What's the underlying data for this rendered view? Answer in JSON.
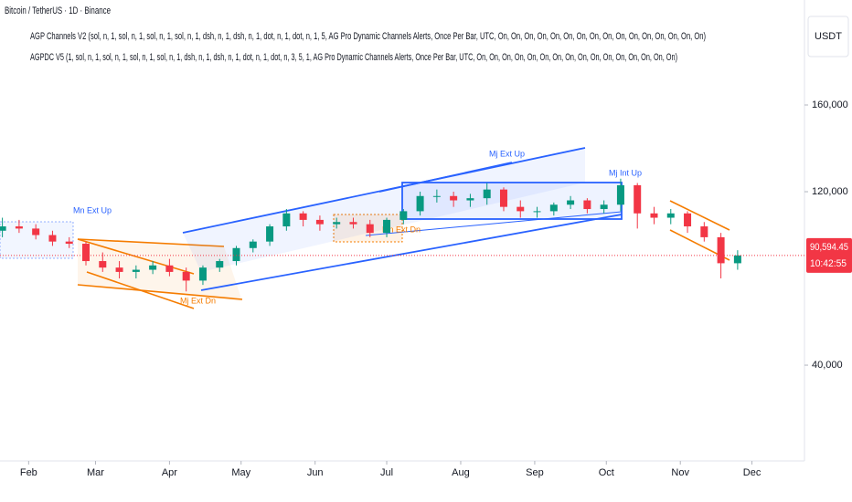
{
  "chart_data": {
    "type": "candlestick",
    "title": "Bitcoin / TetherUS · 1D · Binance",
    "indicators": [
      "AGP Channels V2 (sol, n, 1, sol, n, 1, sol, n, 1, sol, n, 1, dsh, n, 1, dsh, n, 1, dot, n, 1, dot, n, 1, 5, AG Pro Dynamic Channels Alerts, Once Per Bar, UTC, On, On, On, On, On, On, On, On, On, On, On, On, On, On, On, On)",
      "AGPDC V5 (1, sol, n, 1, sol, n, 1, sol, n, 1, sol, n, 1, dsh, n, 1, dsh, n, 1, dot, n, 1, dot, n, 3, 5, 1, AG Pro Dynamic Channels Alerts, Once Per Bar, UTC, On, On, On, On, On, On, On, On, On, On, On, On, On, On, On, On)"
    ],
    "currency": "USDT",
    "annotations": [
      "Mn Ext Up",
      "Mj Ext Up",
      "Mj Int Up",
      "Mn Ext Dn",
      "Mj Ext Dn"
    ],
    "x": [
      21,
      28,
      35,
      42,
      49,
      56,
      63,
      70,
      77,
      84,
      91,
      98,
      105,
      112,
      119,
      126,
      133,
      140,
      147,
      154,
      161,
      168,
      175,
      182,
      189,
      196,
      203,
      210,
      217,
      224,
      231,
      238,
      245,
      252,
      259,
      266,
      273,
      280,
      287,
      294,
      301,
      308,
      315,
      322,
      329
    ],
    "open": [
      102000,
      104000,
      103000,
      100000,
      97000,
      96000,
      88000,
      85000,
      83000,
      84000,
      86000,
      83000,
      79000,
      85000,
      88000,
      94000,
      97000,
      104000,
      110000,
      107000,
      105000,
      106000,
      105000,
      101000,
      107000,
      111000,
      118000,
      118000,
      116000,
      117000,
      121000,
      113000,
      111000,
      111000,
      114000,
      116000,
      112000,
      114000,
      123000,
      110000,
      108000,
      110000,
      104000,
      99000,
      87000
    ],
    "high": [
      108000,
      107000,
      105000,
      102000,
      99000,
      97000,
      92000,
      88000,
      86000,
      88000,
      89000,
      85000,
      86000,
      89000,
      95000,
      98000,
      105000,
      112000,
      111000,
      109000,
      108000,
      108000,
      107000,
      108000,
      112000,
      120000,
      121000,
      120000,
      119000,
      124000,
      122000,
      116000,
      113000,
      115000,
      118000,
      117000,
      116000,
      126000,
      124000,
      113000,
      112000,
      111000,
      106000,
      101000,
      93000
    ],
    "low": [
      99000,
      101000,
      98000,
      95000,
      94000,
      86000,
      83000,
      80000,
      80000,
      82000,
      81000,
      74000,
      77000,
      83000,
      86000,
      92000,
      95000,
      102000,
      104000,
      102000,
      103000,
      103000,
      99000,
      99000,
      105000,
      109000,
      115000,
      113000,
      113000,
      114000,
      111000,
      108000,
      108000,
      109000,
      112000,
      110000,
      110000,
      111000,
      103000,
      105000,
      105000,
      101000,
      97000,
      80000,
      84000
    ],
    "close": [
      104000,
      103000,
      100000,
      97000,
      96000,
      88000,
      85000,
      83000,
      84000,
      86000,
      83000,
      79000,
      85000,
      88000,
      94000,
      97000,
      104000,
      110000,
      107000,
      105000,
      106000,
      105000,
      101000,
      107000,
      111000,
      118000,
      118000,
      116000,
      117000,
      121000,
      113000,
      111000,
      111000,
      114000,
      116000,
      112000,
      114000,
      123000,
      110000,
      108000,
      110000,
      104000,
      99000,
      87000,
      90594.45
    ],
    "up_color": "#089981",
    "down_color": "#f23645",
    "last_price": {
      "value": 90594.45,
      "label": "90,594.45"
    },
    "countdown": "10:42:55",
    "xlim": [
      20,
      357
    ],
    "xticks": [
      {
        "value": 32,
        "label": "Feb"
      },
      {
        "value": 60,
        "label": "Mar"
      },
      {
        "value": 91,
        "label": "Apr"
      },
      {
        "value": 121,
        "label": "May"
      },
      {
        "value": 152,
        "label": "Jun"
      },
      {
        "value": 182,
        "label": "Jul"
      },
      {
        "value": 213,
        "label": "Aug"
      },
      {
        "value": 244,
        "label": "Sep"
      },
      {
        "value": 274,
        "label": "Oct"
      },
      {
        "value": 305,
        "label": "Nov"
      },
      {
        "value": 335,
        "label": "Dec"
      }
    ],
    "ylim": [
      -2500,
      208000
    ],
    "yticks": [
      {
        "value": 160000,
        "label": "160,000"
      },
      {
        "value": 120000,
        "label": "120,000"
      },
      {
        "value": 40000,
        "label": "40,000"
      }
    ]
  }
}
